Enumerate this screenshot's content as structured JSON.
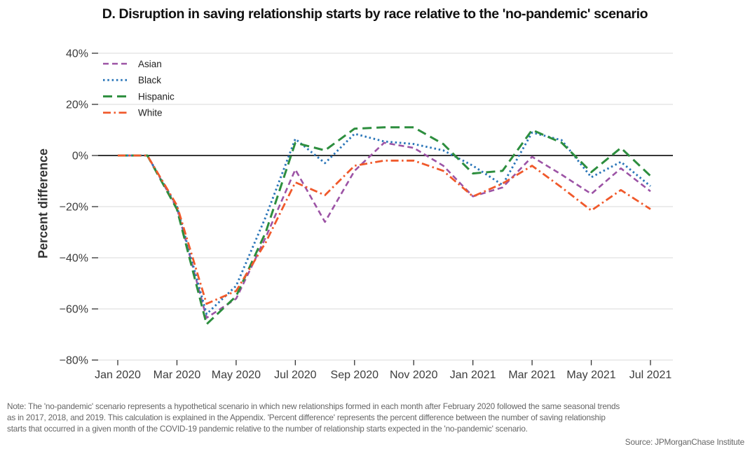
{
  "chart": {
    "title": "D. Disruption in saving relationship starts by race relative to the 'no-pandemic' scenario",
    "ylabel": "Percent difference"
  },
  "chart_data": {
    "type": "line",
    "x": [
      "Jan 2020",
      "Feb 2020",
      "Mar 2020",
      "Apr 2020",
      "May 2020",
      "Jun 2020",
      "Jul 2020",
      "Aug 2020",
      "Sep 2020",
      "Oct 2020",
      "Nov 2020",
      "Dec 2020",
      "Jan 2021",
      "Feb 2021",
      "Mar 2021",
      "Apr 2021",
      "May 2021",
      "Jun 2021",
      "Jul 2021"
    ],
    "x_tick_labels": [
      "Jan 2020",
      "Mar 2020",
      "May 2020",
      "Jul 2020",
      "Sep 2020",
      "Nov 2020",
      "Jan 2021",
      "Mar 2021",
      "May 2021",
      "Jul 2021"
    ],
    "y_tick_values": [
      40,
      20,
      0,
      -20,
      -40,
      -60,
      -80
    ],
    "y_tick_labels": [
      "40%",
      "20%",
      "0%",
      "−20%",
      "−40%",
      "−60%",
      "−80%"
    ],
    "ylim": [
      -80,
      45
    ],
    "unit": "percent",
    "grid": "horizontal",
    "zero_line": true,
    "legend_position": "top-left",
    "series": [
      {
        "name": "Asian",
        "color": "#9c53a5",
        "dash": "dashed",
        "values": [
          0,
          0,
          -20.5,
          -63.5,
          -56,
          -32,
          -5.5,
          -26,
          -6,
          5,
          3,
          -4,
          -16,
          -12.5,
          -0.5,
          -7.5,
          -15,
          -5,
          -14
        ]
      },
      {
        "name": "Black",
        "color": "#2b76b9",
        "dash": "dotted",
        "values": [
          0,
          0,
          -20,
          -62,
          -51,
          -24,
          6.5,
          -3,
          8.5,
          5.5,
          4.5,
          2,
          -4,
          -11.5,
          9,
          6,
          -8.5,
          -2.5,
          -12
        ]
      },
      {
        "name": "Hispanic",
        "color": "#2d8e3e",
        "dash": "longdash",
        "values": [
          0,
          0,
          -21,
          -66,
          -55,
          -30,
          5,
          2,
          10.5,
          11,
          11,
          4.5,
          -7,
          -6,
          10,
          5,
          -6.5,
          3,
          -8
        ]
      },
      {
        "name": "White",
        "color": "#f0592b",
        "dash": "dashdot",
        "values": [
          0,
          0,
          -19.5,
          -58,
          -53,
          -34,
          -10.5,
          -15.5,
          -4,
          -2,
          -2,
          -6,
          -16,
          -11,
          -4,
          -12.5,
          -21.5,
          -13.5,
          -21
        ]
      }
    ]
  },
  "footer": {
    "note_lines": [
      "Note: The 'no-pandemic' scenario represents a hypothetical scenario in which new relationships formed in each month after February 2020 followed the same seasonal trends",
      "as in 2017, 2018, and 2019. This calculation is explained in the Appendix. 'Percent difference' represents the percent difference between the number of saving relationship",
      "starts that occurred in a given month of the COVID-19 pandemic relative to the number of relationship starts expected in the 'no-pandemic' scenario."
    ],
    "source": "Source: JPMorganChase Institute"
  },
  "style_colors": {
    "grid": "#d8d8d8",
    "zero_line": "#1a1a1a",
    "tick": "#333333",
    "tick_label": "#3d3d3d",
    "legend_text": "#222222"
  }
}
